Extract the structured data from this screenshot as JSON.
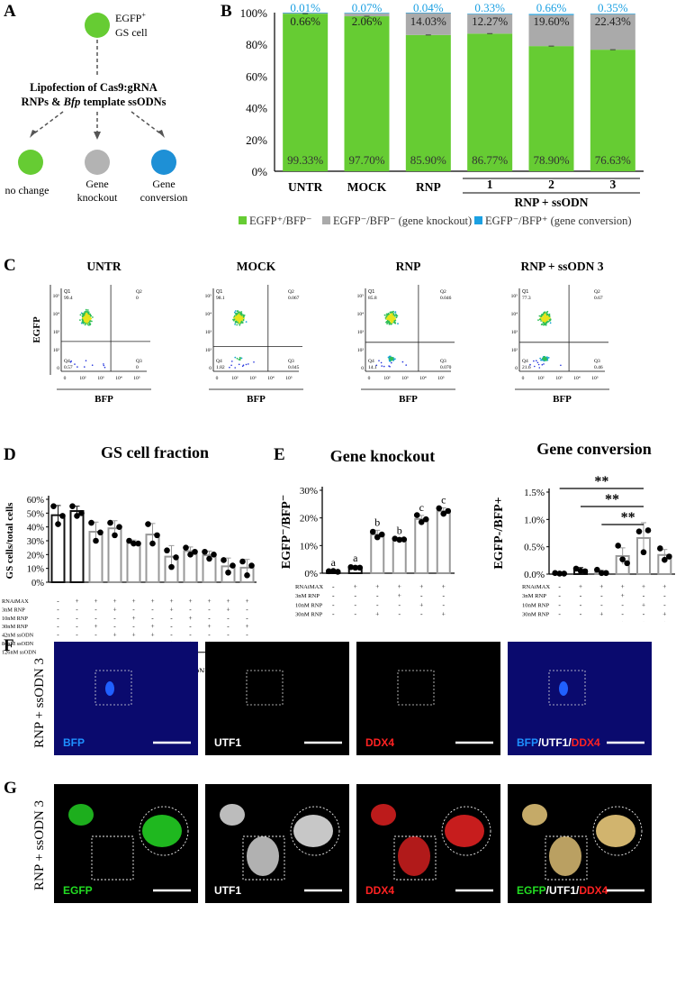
{
  "panelA": {
    "letter": "A",
    "top_label": "EGFP⁺ GS cell",
    "top_label_line1": "EGFP",
    "top_label_sup": "+",
    "top_label_line2": "GS cell",
    "method_line1": "Lipofection of Cas9:gRNA",
    "method_line2_pre": "RNPs & ",
    "method_line2_italic": "Bfp",
    "method_line2_post": " template ssODNs",
    "outcomes": [
      {
        "label": "no change",
        "color": "#66cc33"
      },
      {
        "label": "Gene knockout",
        "line1": "Gene",
        "line2": "knockout",
        "color": "#b3b3b3"
      },
      {
        "label": "Gene conversion",
        "line1": "Gene",
        "line2": "conversion",
        "color": "#1e90d6"
      }
    ]
  },
  "chart_data": [
    {
      "panel": "B",
      "type": "bar",
      "stacked": true,
      "categories": [
        "UNTR",
        "MOCK",
        "RNP",
        "1",
        "2",
        "3"
      ],
      "group_label": "RNP + ssODN",
      "series": [
        {
          "name": "EGFP+/BFP-",
          "color": "#66cc33",
          "values": [
            99.33,
            97.7,
            85.9,
            86.77,
            78.9,
            76.63
          ],
          "labels": [
            "99.33%",
            "97.70%",
            "85.90%",
            "86.77%",
            "78.90%",
            "76.63%"
          ]
        },
        {
          "name": "EGFP-/BFP- (gene knockout)",
          "color": "#aaaaaa",
          "values": [
            0.66,
            2.06,
            14.03,
            12.27,
            19.6,
            22.43
          ],
          "labels": [
            "0.66%",
            "2.06%",
            "14.03%",
            "12.27%",
            "19.60%",
            "22.43%"
          ]
        },
        {
          "name": "EGFP-/BFP+ (gene conversion)",
          "color": "#1ba0e2",
          "values": [
            0.01,
            0.07,
            0.04,
            0.33,
            0.66,
            0.35
          ],
          "labels": [
            "0.01%",
            "0.07%",
            "0.04%",
            "0.33%",
            "0.66%",
            "0.35%"
          ]
        }
      ],
      "yticks": [
        "0%",
        "20%",
        "40%",
        "60%",
        "80%",
        "100%"
      ],
      "ylim": [
        0,
        100
      ],
      "legend": [
        {
          "text": "EGFP⁺/BFP⁻",
          "color": "#66cc33"
        },
        {
          "text": "EGFP⁻/BFP⁻ (gene knockout)",
          "color": "#aaaaaa"
        },
        {
          "text": "EGFP⁻/BFP⁺ (gene conversion)",
          "color": "#1ba0e2"
        }
      ]
    },
    {
      "panel": "C",
      "type": "scatter",
      "plots": [
        {
          "title": "UNTR",
          "q1": "99.4",
          "q2": "0",
          "q3": "0",
          "q4": "0.57"
        },
        {
          "title": "MOCK",
          "q1": "98.1",
          "q2": "0.067",
          "q3": "0.045",
          "q4": "1.82"
        },
        {
          "title": "RNP",
          "q1": "85.8",
          "q2": "0.046",
          "q3": "0.070",
          "q4": "14.1"
        },
        {
          "title": "RNP + ssODN 3",
          "q1": "77.3",
          "q2": "0.67",
          "q3": "0.46",
          "q4": "21.6"
        }
      ],
      "xlabel": "BFP",
      "ylabel": "EGFP",
      "quadrant_names": [
        "Q1",
        "Q2",
        "Q3",
        "Q4"
      ]
    },
    {
      "panel": "D",
      "type": "bar",
      "title": "GS cell fraction",
      "ylabel": "GS cells/total cells",
      "yticks": [
        "0%",
        "10%",
        "20%",
        "30%",
        "40%",
        "50%",
        "60%"
      ],
      "ylim": [
        0,
        60
      ],
      "categories": [
        "UNTR",
        "MOCK",
        "RNP",
        "1",
        "2",
        "3",
        "4",
        "5",
        "6",
        "7",
        "8"
      ],
      "values": [
        48.5,
        51.5,
        36.5,
        39.0,
        28.5,
        34.5,
        18.5,
        22.5,
        19.5,
        11.5,
        10.5
      ],
      "errors": [
        7,
        3.5,
        7,
        5.5,
        2,
        8,
        8,
        3,
        3,
        6,
        6
      ],
      "points": [
        [
          55,
          48,
          42
        ],
        [
          55,
          50,
          48
        ],
        [
          43,
          36,
          30
        ],
        [
          43,
          40,
          34
        ],
        [
          30,
          28,
          28
        ],
        [
          42,
          34,
          28
        ],
        [
          23,
          18,
          11
        ],
        [
          25,
          22,
          20
        ],
        [
          22,
          20,
          17
        ],
        [
          16,
          12,
          7
        ],
        [
          15,
          12,
          5
        ]
      ],
      "row_labels": [
        "RNAiMAX",
        "3nM RNP",
        "10nM RNP",
        "30nM RNP",
        "42nM ssODN",
        "84nM ssODN",
        "126nM ssODN"
      ],
      "condition_matrix": [
        [
          "-",
          "+",
          "+",
          "+",
          "+",
          "+",
          "+",
          "+",
          "+",
          "+",
          "+"
        ],
        [
          "-",
          "-",
          "-",
          "+",
          "-",
          "-",
          "+",
          "-",
          "-",
          "+",
          "-"
        ],
        [
          "-",
          "-",
          "-",
          "-",
          "+",
          "-",
          "-",
          "+",
          "-",
          "-",
          "-"
        ],
        [
          "-",
          "-",
          "+",
          "-",
          "-",
          "+",
          "-",
          "-",
          "+",
          "-",
          "+"
        ],
        [
          "-",
          "-",
          "-",
          "+",
          "+",
          "+",
          "-",
          "-",
          "-",
          "-",
          "-"
        ],
        [
          "-",
          "-",
          "-",
          "-",
          "-",
          "-",
          "+",
          "+",
          "+",
          "-",
          "-"
        ],
        [
          "-",
          "-",
          "-",
          "-",
          "-",
          "-",
          "-",
          "-",
          "-",
          "+",
          "+"
        ]
      ],
      "group_label": "RNP + ssODN"
    },
    {
      "panel": "E",
      "type": "bar",
      "title": "Gene knockout",
      "ylabel": "EGFP⁻/BFP⁻",
      "yticks": [
        "0%",
        "10%",
        "20%",
        "30%"
      ],
      "ylim": [
        0,
        30
      ],
      "categories": [
        "UNTR",
        "MOCK",
        "RNP",
        "1",
        "2",
        "3"
      ],
      "values": [
        0.66,
        2.06,
        14.03,
        12.27,
        19.6,
        22.43
      ],
      "errors": [
        0.3,
        0.5,
        1.5,
        0.3,
        1.3,
        1.2
      ],
      "points": [
        [
          0.7,
          0.5,
          0.8
        ],
        [
          2.2,
          2.0,
          2.0
        ],
        [
          15,
          14,
          13
        ],
        [
          12.5,
          12.2,
          12.1
        ],
        [
          21,
          19.5,
          18.5
        ],
        [
          23.5,
          22.5,
          21.5
        ]
      ],
      "significance": [
        "a",
        "a",
        "b",
        "b",
        "c",
        "c"
      ],
      "row_labels": [
        "RNAiMAX",
        "3nM  RNP",
        "10nM RNP",
        "30nM RNP",
        "42nM ssODN"
      ],
      "condition_matrix": [
        [
          "-",
          "+",
          "+",
          "+",
          "+",
          "+"
        ],
        [
          "-",
          "-",
          "-",
          "+",
          "-",
          "-"
        ],
        [
          "-",
          "-",
          "-",
          "-",
          "+",
          "-"
        ],
        [
          "-",
          "-",
          "+",
          "-",
          "-",
          "+"
        ],
        [
          "-",
          "-",
          "-",
          "+",
          "+",
          "+"
        ]
      ],
      "group_label": "RNP + ssODN"
    },
    {
      "panel": "E-right",
      "type": "bar",
      "title": "Gene conversion",
      "ylabel": "EGFP-/BFP+",
      "yticks": [
        "0.0%",
        "0.5%",
        "1.0%",
        "1.5%"
      ],
      "ylim": [
        0,
        1.5
      ],
      "categories": [
        "UNTR",
        "MOCK",
        "RNP",
        "1",
        "2",
        "3"
      ],
      "values": [
        0.01,
        0.07,
        0.04,
        0.33,
        0.66,
        0.35
      ],
      "errors": [
        0.01,
        0.05,
        0.03,
        0.15,
        0.28,
        0.1
      ],
      "points": [
        [
          0.02,
          0.01,
          0.01
        ],
        [
          0.1,
          0.05,
          0.06
        ],
        [
          0.08,
          0.02,
          0.02
        ],
        [
          0.52,
          0.2,
          0.27
        ],
        [
          0.78,
          0.8,
          0.4
        ],
        [
          0.47,
          0.32,
          0.26
        ]
      ],
      "significance_bars": [
        "**",
        "**",
        "**"
      ],
      "row_labels": [
        "RNAiMAX",
        "3nM  RNP",
        "10nM RNP",
        "30nM RNP",
        "42nM ssODN"
      ],
      "condition_matrix": [
        [
          "-",
          "+",
          "+",
          "+",
          "+",
          "+"
        ],
        [
          "-",
          "-",
          "-",
          "+",
          "-",
          "-"
        ],
        [
          "-",
          "-",
          "-",
          "-",
          "+",
          "-"
        ],
        [
          "-",
          "-",
          "+",
          "-",
          "-",
          "+"
        ],
        [
          "-",
          "-",
          "-",
          "+",
          "+",
          "+"
        ]
      ],
      "group_label": "RNP + ssODN"
    }
  ],
  "panelF": {
    "letter": "F",
    "side_label": "RNP + ssODN 3",
    "images": [
      {
        "caption": "BFP",
        "caption_color": "#1e90ff",
        "parts": [
          {
            "t": "BFP",
            "c": "#1e90ff"
          }
        ]
      },
      {
        "caption": "UTF1",
        "caption_color": "#ffffff",
        "parts": [
          {
            "t": "UTF1",
            "c": "#ffffff"
          }
        ]
      },
      {
        "caption": "DDX4",
        "caption_color": "#ff2222",
        "parts": [
          {
            "t": "DDX4",
            "c": "#ff2222"
          }
        ]
      },
      {
        "caption": "BFP/UTF1/DDX4",
        "parts": [
          {
            "t": "BFP",
            "c": "#1e90ff"
          },
          {
            "t": "/UTF1/",
            "c": "#ffffff"
          },
          {
            "t": "DDX4",
            "c": "#ff2222"
          }
        ]
      }
    ]
  },
  "panelG": {
    "letter": "G",
    "side_label": "RNP + ssODN 3",
    "images": [
      {
        "caption": "EGFP",
        "parts": [
          {
            "t": "EGFP",
            "c": "#22dd22"
          }
        ]
      },
      {
        "caption": "UTF1",
        "parts": [
          {
            "t": "UTF1",
            "c": "#ffffff"
          }
        ]
      },
      {
        "caption": "DDX4",
        "parts": [
          {
            "t": "DDX4",
            "c": "#ff2222"
          }
        ]
      },
      {
        "caption": "EGFP/UTF1/DDX4",
        "parts": [
          {
            "t": "EGFP",
            "c": "#22dd22"
          },
          {
            "t": "/UTF1/",
            "c": "#ffffff"
          },
          {
            "t": "DDX4",
            "c": "#ff2222"
          }
        ]
      }
    ]
  },
  "panel_letters": {
    "b": "B",
    "c": "C",
    "d": "D",
    "e": "E"
  }
}
